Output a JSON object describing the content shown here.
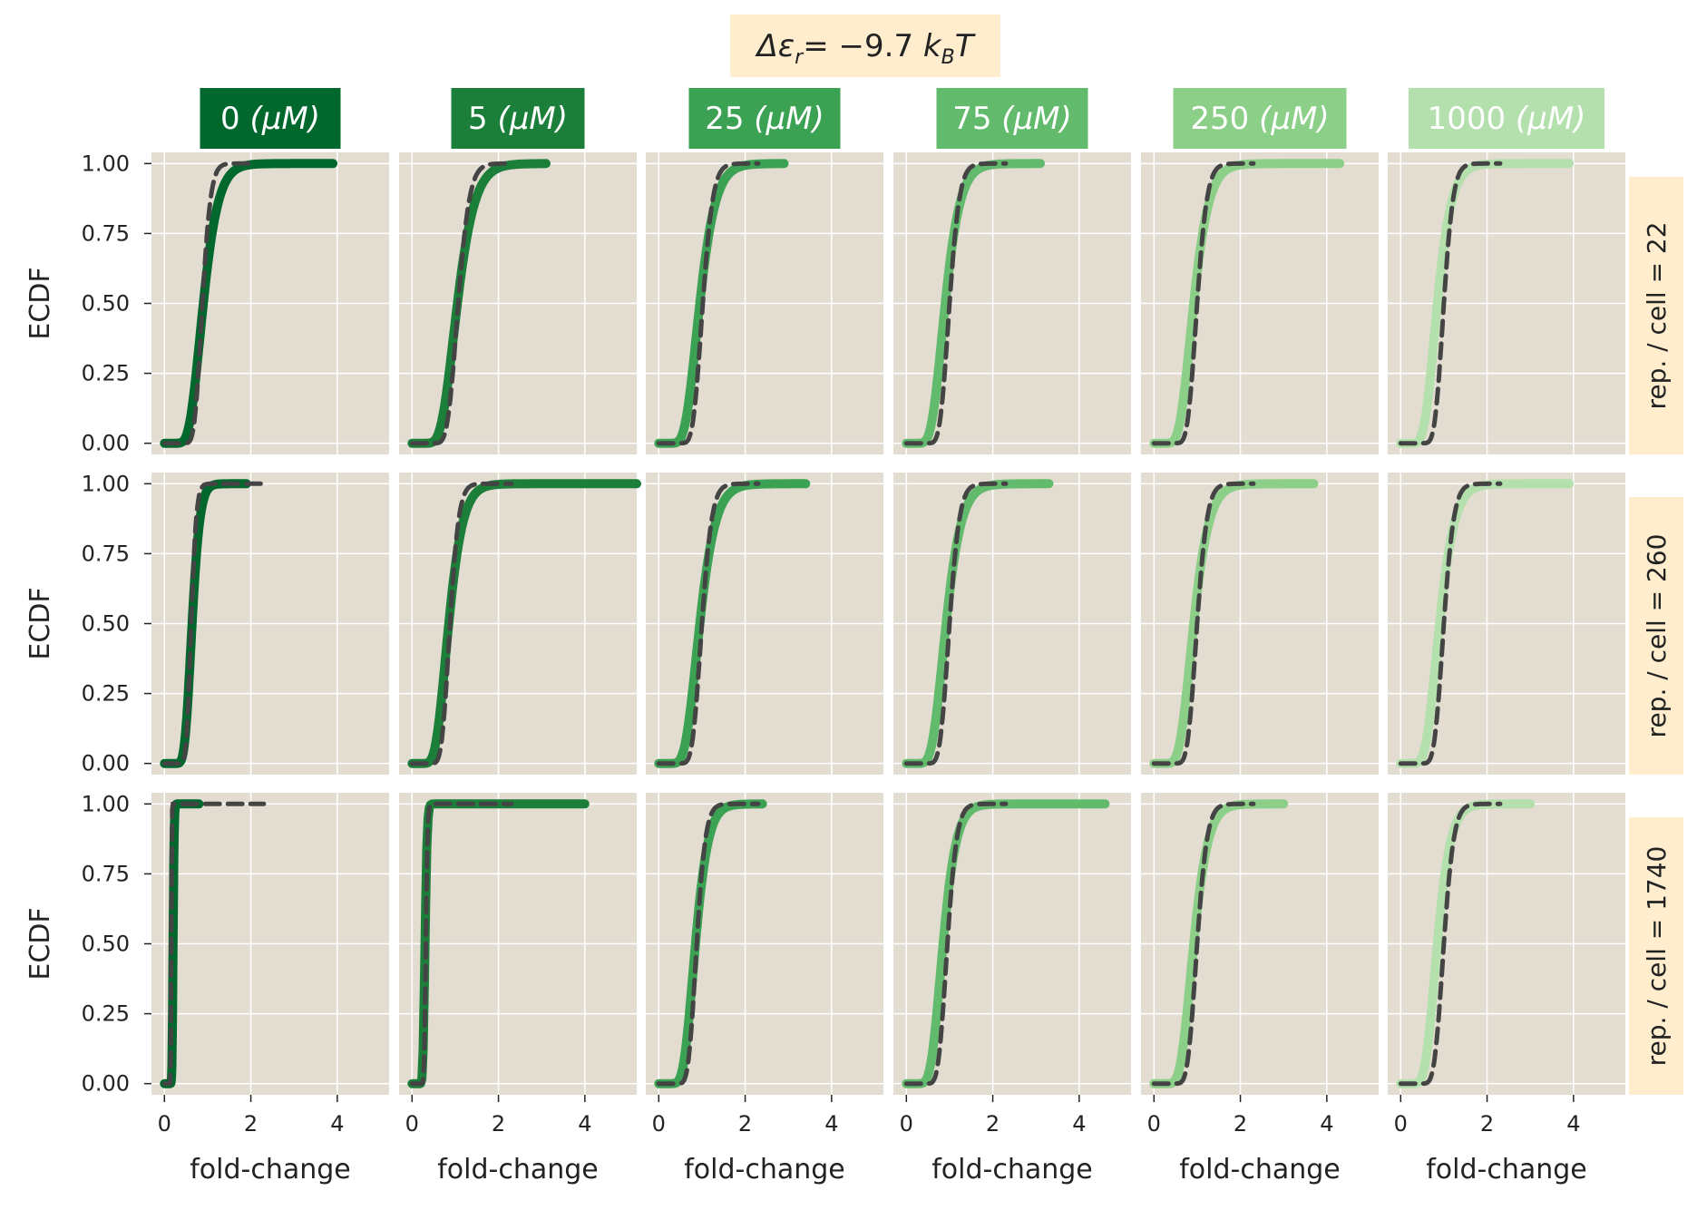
{
  "title": "Δε_r = −9.7 k_BT",
  "title_parts": {
    "delta": "Δε",
    "sub_r": "r",
    "eq": "= −9.7 ",
    "k": "k",
    "sub_B": "B",
    "T": "T"
  },
  "colors": {
    "panel_bg": "#E3DCD0",
    "grid": "#FFFFFF",
    "strip_bg": "#FFEDCE",
    "theory_line": "#444444",
    "concentrations": [
      "#00682C",
      "#1B7F3A",
      "#3BA153",
      "#62BB6D",
      "#8BCF88",
      "#B4E0AD"
    ]
  },
  "columns": [
    {
      "value": "0",
      "unit": "(μM)"
    },
    {
      "value": "5",
      "unit": "(μM)"
    },
    {
      "value": "25",
      "unit": "(μM)"
    },
    {
      "value": "75",
      "unit": "(μM)"
    },
    {
      "value": "250",
      "unit": "(μM)"
    },
    {
      "value": "1000",
      "unit": "(μM)"
    }
  ],
  "rows": [
    {
      "label": "rep. / cell = 22"
    },
    {
      "label": "rep. / cell = 260"
    },
    {
      "label": "rep. / cell = 1740"
    }
  ],
  "chart_data": {
    "type": "line",
    "facets": "3 rows × 6 columns",
    "xlabel": "fold-change",
    "ylabel": "ECDF",
    "xlim": [
      -0.3,
      5.2
    ],
    "ylim": [
      -0.04,
      1.04
    ],
    "xticks": [
      0,
      2,
      4
    ],
    "yticks": [
      0.0,
      0.25,
      0.5,
      0.75,
      1.0
    ],
    "ytick_labels": [
      "0.00",
      "0.25",
      "0.50",
      "0.75",
      "1.00"
    ],
    "series_note": "solid colored line = experimental ECDF; dashed dark line = theory",
    "panels": [
      [
        {
          "exp": {
            "m": 0.9,
            "s": 0.3,
            "xmax": 3.9
          },
          "theory": {
            "m": 0.88,
            "s": 0.17,
            "xmax": 2.0
          }
        },
        {
          "exp": {
            "m": 1.05,
            "s": 0.3,
            "xmax": 3.1
          },
          "theory": {
            "m": 1.07,
            "s": 0.19,
            "xmax": 2.3
          }
        },
        {
          "exp": {
            "m": 0.95,
            "s": 0.3,
            "xmax": 2.9
          },
          "theory": {
            "m": 1.02,
            "s": 0.18,
            "xmax": 2.3
          }
        },
        {
          "exp": {
            "m": 0.9,
            "s": 0.3,
            "xmax": 3.1
          },
          "theory": {
            "m": 1.0,
            "s": 0.18,
            "xmax": 2.3
          }
        },
        {
          "exp": {
            "m": 0.92,
            "s": 0.3,
            "xmax": 4.3
          },
          "theory": {
            "m": 1.0,
            "s": 0.18,
            "xmax": 2.3
          }
        },
        {
          "exp": {
            "m": 0.85,
            "s": 0.3,
            "xmax": 3.9
          },
          "theory": {
            "m": 1.0,
            "s": 0.17,
            "xmax": 2.3
          }
        }
      ],
      [
        {
          "exp": {
            "m": 0.64,
            "s": 0.22,
            "xmax": 1.9
          },
          "theory": {
            "m": 0.62,
            "s": 0.15,
            "xmax": 2.3
          }
        },
        {
          "exp": {
            "m": 0.85,
            "s": 0.3,
            "xmax": 5.2
          },
          "theory": {
            "m": 0.88,
            "s": 0.18,
            "xmax": 2.3
          }
        },
        {
          "exp": {
            "m": 0.95,
            "s": 0.3,
            "xmax": 3.4
          },
          "theory": {
            "m": 1.0,
            "s": 0.18,
            "xmax": 2.3
          }
        },
        {
          "exp": {
            "m": 0.92,
            "s": 0.3,
            "xmax": 3.3
          },
          "theory": {
            "m": 1.0,
            "s": 0.18,
            "xmax": 2.3
          }
        },
        {
          "exp": {
            "m": 0.92,
            "s": 0.3,
            "xmax": 3.7
          },
          "theory": {
            "m": 1.0,
            "s": 0.18,
            "xmax": 2.3
          }
        },
        {
          "exp": {
            "m": 0.9,
            "s": 0.3,
            "xmax": 3.9
          },
          "theory": {
            "m": 1.0,
            "s": 0.18,
            "xmax": 2.3
          }
        }
      ],
      [
        {
          "exp": {
            "m": 0.2,
            "s": 0.1,
            "xmax": 0.8
          },
          "theory": {
            "m": 0.16,
            "s": 0.06,
            "xmax": 2.3
          }
        },
        {
          "exp": {
            "m": 0.3,
            "s": 0.13,
            "xmax": 4.0
          },
          "theory": {
            "m": 0.32,
            "s": 0.1,
            "xmax": 2.3
          }
        },
        {
          "exp": {
            "m": 0.85,
            "s": 0.27,
            "xmax": 2.4
          },
          "theory": {
            "m": 0.88,
            "s": 0.18,
            "xmax": 2.3
          }
        },
        {
          "exp": {
            "m": 0.85,
            "s": 0.28,
            "xmax": 4.6
          },
          "theory": {
            "m": 0.95,
            "s": 0.18,
            "xmax": 2.3
          }
        },
        {
          "exp": {
            "m": 0.92,
            "s": 0.28,
            "xmax": 3.0
          },
          "theory": {
            "m": 1.0,
            "s": 0.18,
            "xmax": 2.3
          }
        },
        {
          "exp": {
            "m": 0.85,
            "s": 0.28,
            "xmax": 3.0
          },
          "theory": {
            "m": 1.0,
            "s": 0.18,
            "xmax": 2.3
          }
        }
      ]
    ]
  }
}
